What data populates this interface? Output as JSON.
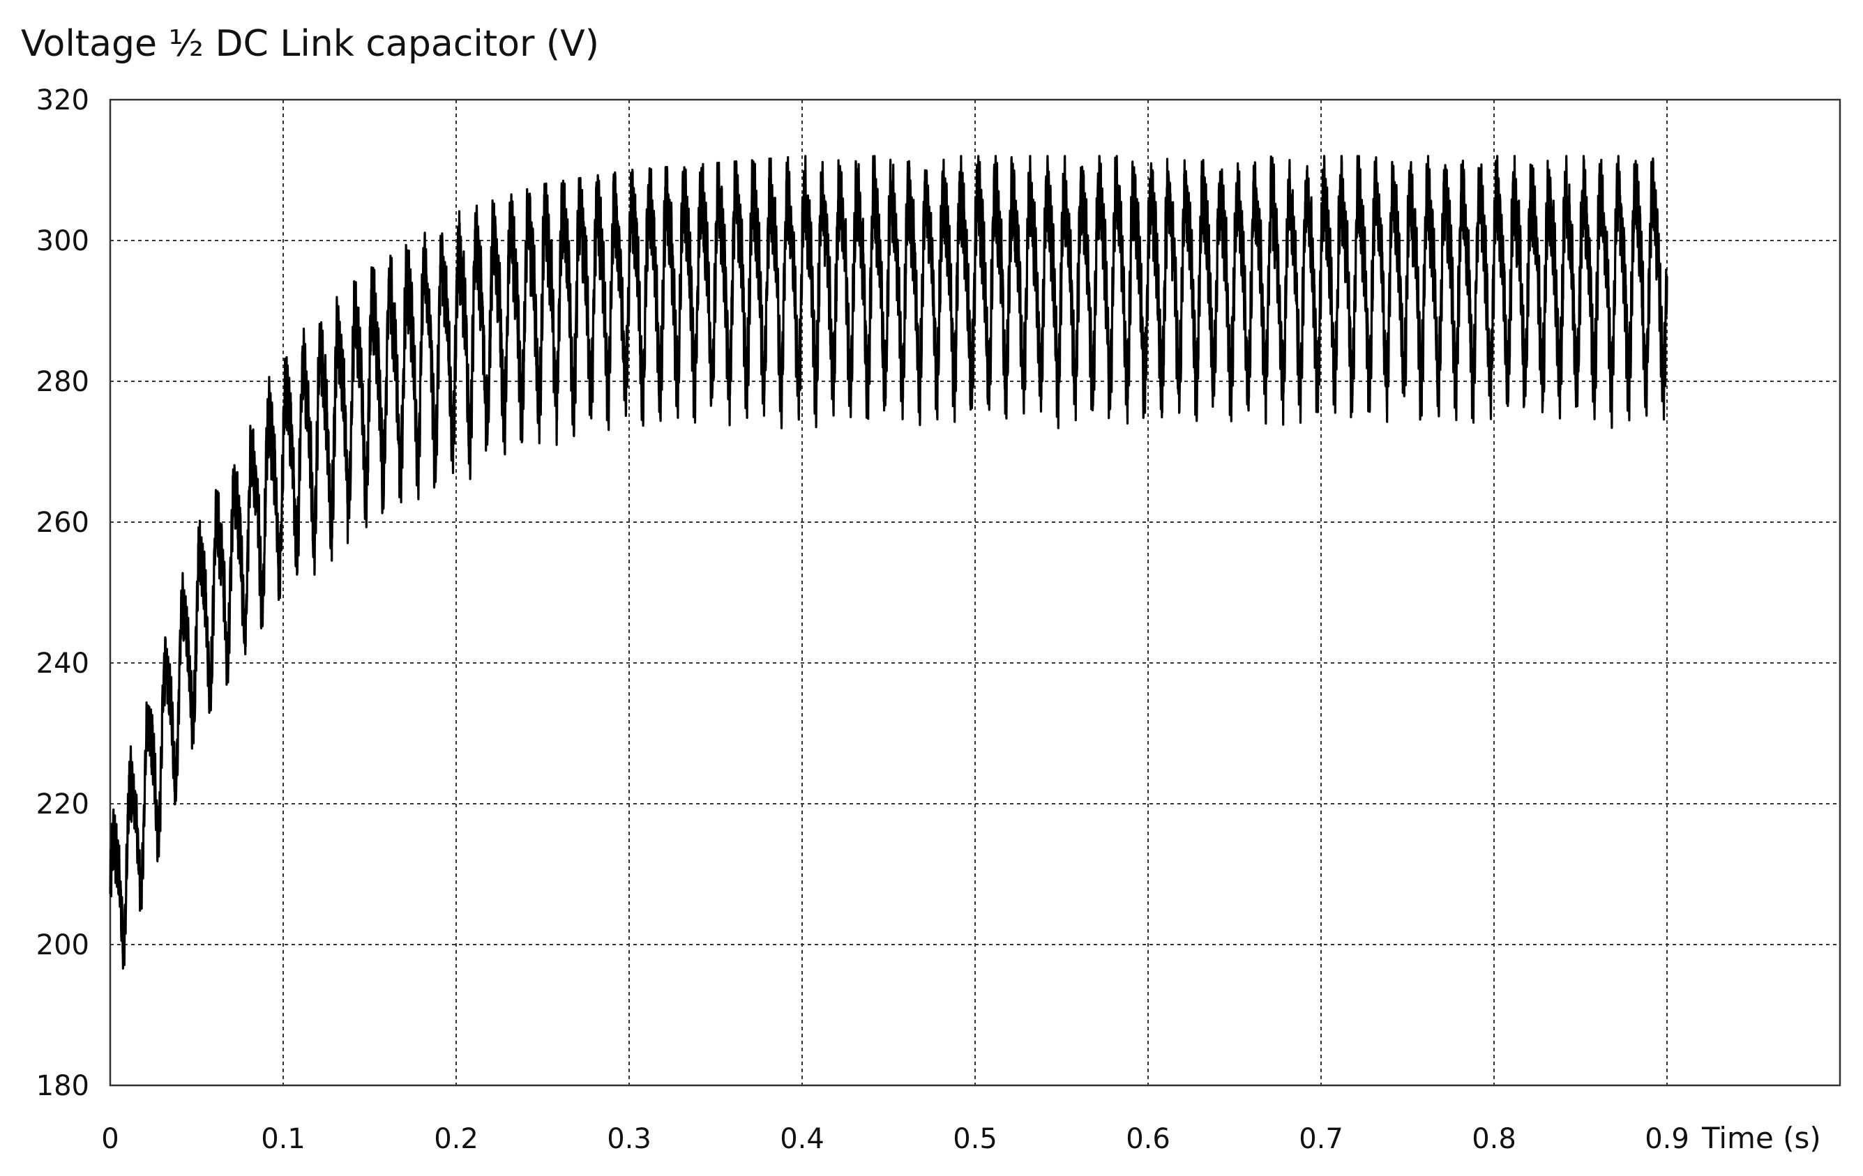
{
  "chart_data": {
    "type": "line",
    "title": "Voltage ½ DC Link capacitor (V)",
    "xlabel": "Time (s)",
    "ylabel": "",
    "xlim": [
      0,
      1.0
    ],
    "ylim": [
      180,
      320
    ],
    "x_ticks": [
      0,
      0.1,
      0.2,
      0.3,
      0.4,
      0.5,
      0.6,
      0.7,
      0.8,
      0.9
    ],
    "x_tick_labels": [
      "0",
      "0.1",
      "0.2",
      "0.3",
      "0.4",
      "0.5",
      "0.6",
      "0.7",
      "0.8",
      "0.9"
    ],
    "y_ticks": [
      180,
      200,
      220,
      240,
      260,
      280,
      300,
      320
    ],
    "y_tick_labels": [
      "180",
      "200",
      "220",
      "240",
      "260",
      "280",
      "300",
      "320"
    ],
    "grid": true,
    "grid_style": "dotted",
    "line_color": "#000000",
    "series": [
      {
        "x": [
          0,
          0.05,
          0.1,
          0.15,
          0.2,
          0.25,
          0.3,
          0.35,
          0.4,
          0.45,
          0.5,
          0.55,
          0.6,
          0.65,
          0.7,
          0.75,
          0.8,
          0.85,
          0.9
        ],
        "mean": [
          205,
          245,
          268,
          280,
          287,
          292,
          294,
          295,
          295,
          295,
          295,
          295,
          295,
          295,
          295,
          295,
          295,
          295,
          295
        ],
        "ripple_min": [
          190,
          230,
          250,
          257,
          265,
          268,
          271,
          272,
          273,
          273,
          273,
          273,
          273,
          273,
          273,
          273,
          273,
          273,
          273
        ],
        "ripple_max": [
          218,
          262,
          286,
          296,
          304,
          308,
          310,
          311,
          312,
          312,
          312,
          312,
          312,
          312,
          312,
          312,
          312,
          312,
          312
        ],
        "ripple_frequency_hz": 100
      }
    ]
  }
}
